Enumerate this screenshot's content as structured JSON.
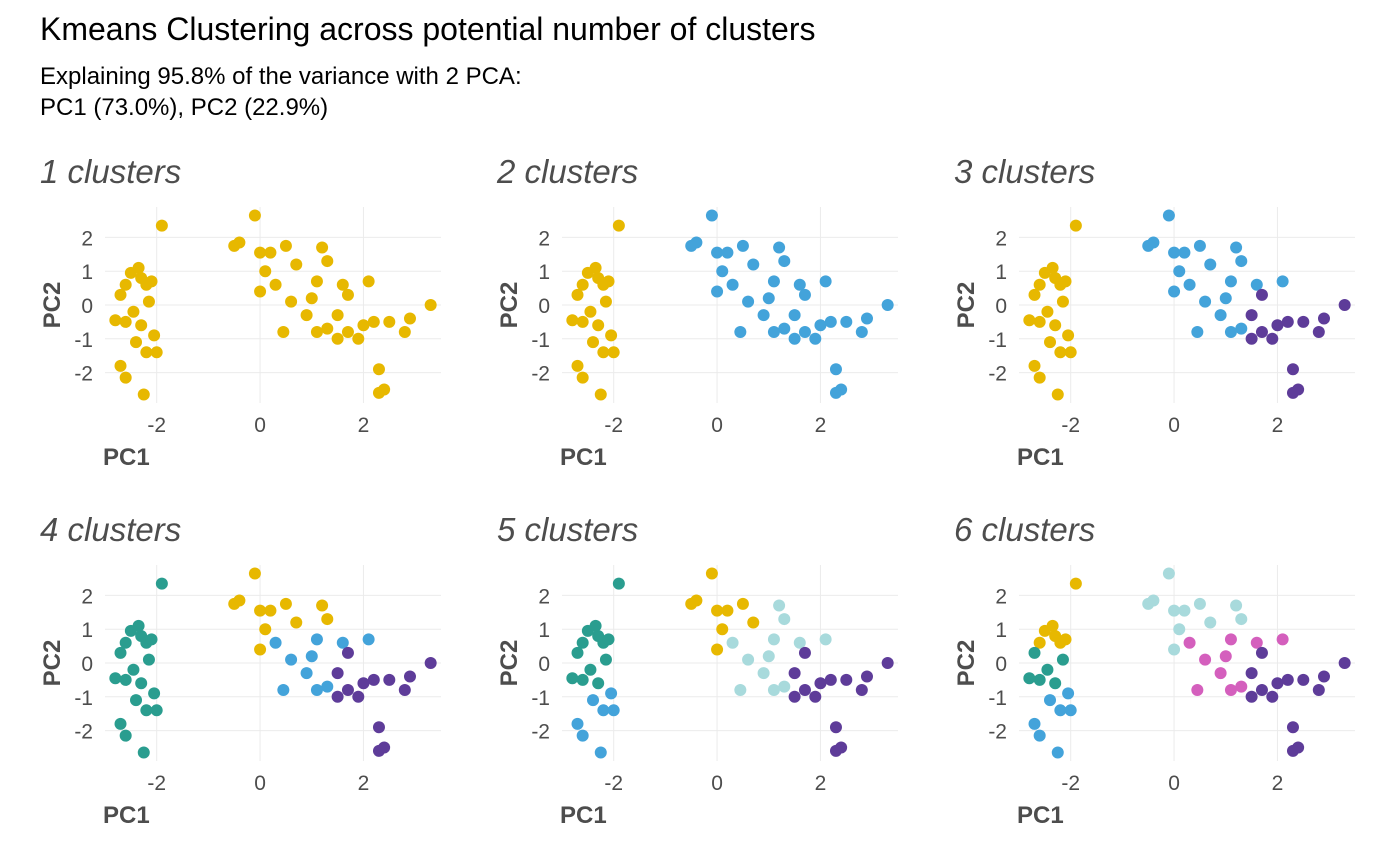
{
  "title": "Kmeans Clustering across potential number of clusters",
  "subtitle": [
    "Explaining 95.8% of the variance with 2 PCA:",
    "PC1 (73.0%), PC2 (22.9%)"
  ],
  "chart_data": [
    {
      "type": "scatter",
      "title": "1 clusters",
      "xlabel": "PC1",
      "ylabel": "PC2",
      "xlim": [
        -3.0,
        3.5
      ],
      "ylim": [
        -2.9,
        2.9
      ],
      "xticks": [
        -2,
        0,
        2
      ],
      "yticks": [
        -2,
        -1,
        0,
        1,
        2
      ],
      "grid": true,
      "series": [
        {
          "color": "#E7B800",
          "x": [
            -2.2,
            -2.5,
            -2.3,
            -2.1,
            -1.9,
            -2.35,
            -2.6,
            -2.7,
            -2.6,
            -2.8,
            -2.3,
            -2.15,
            -2.45,
            -2.4,
            -2.2,
            -2.7,
            -2.6,
            -2.25,
            -2.0,
            -2.05,
            -0.1,
            -0.4,
            -0.5,
            0.0,
            0.2,
            0.5,
            0.1,
            0.0,
            0.7,
            1.2,
            1.3,
            0.3,
            0.45,
            0.6,
            1.0,
            1.1,
            0.9,
            1.3,
            1.1,
            1.6,
            2.1,
            1.5,
            1.7,
            2.0,
            1.9,
            2.3,
            2.4,
            2.3,
            2.8,
            2.9,
            3.3,
            1.7,
            2.2,
            1.5,
            2.5
          ],
          "y": [
            0.6,
            0.95,
            0.8,
            0.7,
            2.35,
            1.1,
            0.6,
            0.3,
            -0.5,
            -0.45,
            -0.6,
            0.1,
            -0.2,
            -1.1,
            -1.4,
            -1.8,
            -2.15,
            -2.65,
            -1.4,
            -0.9,
            2.65,
            1.85,
            1.75,
            1.55,
            1.55,
            1.75,
            1.0,
            0.4,
            1.2,
            1.7,
            1.3,
            0.6,
            -0.8,
            0.1,
            0.2,
            0.7,
            -0.3,
            -0.7,
            -0.8,
            0.6,
            0.7,
            -0.3,
            -0.8,
            -0.6,
            -1.0,
            -1.9,
            -2.5,
            -2.6,
            -0.8,
            -0.4,
            0.0,
            0.3,
            -0.5,
            -1.0,
            -0.5
          ]
        }
      ]
    },
    {
      "type": "scatter",
      "title": "2 clusters",
      "xlabel": "PC1",
      "ylabel": "PC2",
      "xlim": [
        -3.0,
        3.5
      ],
      "ylim": [
        -2.9,
        2.9
      ],
      "xticks": [
        -2,
        0,
        2
      ],
      "yticks": [
        -2,
        -1,
        0,
        1,
        2
      ],
      "grid": true,
      "series": [
        {
          "color": "#E7B800",
          "x": [
            -2.2,
            -2.5,
            -2.3,
            -2.1,
            -1.9,
            -2.35,
            -2.6,
            -2.7,
            -2.6,
            -2.8,
            -2.3,
            -2.15,
            -2.45,
            -2.4,
            -2.2,
            -2.7,
            -2.6,
            -2.25,
            -2.0,
            -2.05
          ],
          "y": [
            0.6,
            0.95,
            0.8,
            0.7,
            2.35,
            1.1,
            0.6,
            0.3,
            -0.5,
            -0.45,
            -0.6,
            0.1,
            -0.2,
            -1.1,
            -1.4,
            -1.8,
            -2.15,
            -2.65,
            -1.4,
            -0.9
          ]
        },
        {
          "color": "#43A3DA",
          "x": [
            -0.1,
            -0.4,
            -0.5,
            0.0,
            0.2,
            0.5,
            0.1,
            0.0,
            0.7,
            1.2,
            1.3,
            0.3,
            0.45,
            0.6,
            1.0,
            1.1,
            0.9,
            1.3,
            1.1,
            1.6,
            2.1,
            1.5,
            1.7,
            2.0,
            1.9,
            2.3,
            2.4,
            2.3,
            2.8,
            2.9,
            3.3,
            1.7,
            2.2,
            1.5,
            2.5
          ],
          "y": [
            2.65,
            1.85,
            1.75,
            1.55,
            1.55,
            1.75,
            1.0,
            0.4,
            1.2,
            1.7,
            1.3,
            0.6,
            -0.8,
            0.1,
            0.2,
            0.7,
            -0.3,
            -0.7,
            -0.8,
            0.6,
            0.7,
            -0.3,
            -0.8,
            -0.6,
            -1.0,
            -1.9,
            -2.5,
            -2.6,
            -0.8,
            -0.4,
            0.0,
            0.3,
            -0.5,
            -1.0,
            -0.5
          ]
        }
      ]
    },
    {
      "type": "scatter",
      "title": "3 clusters",
      "xlabel": "PC1",
      "ylabel": "PC2",
      "xlim": [
        -3.0,
        3.5
      ],
      "ylim": [
        -2.9,
        2.9
      ],
      "xticks": [
        -2,
        0,
        2
      ],
      "yticks": [
        -2,
        -1,
        0,
        1,
        2
      ],
      "grid": true,
      "series": [
        {
          "color": "#E7B800",
          "x": [
            -2.2,
            -2.5,
            -2.3,
            -2.1,
            -1.9,
            -2.35,
            -2.6,
            -2.7,
            -2.6,
            -2.8,
            -2.3,
            -2.15,
            -2.45,
            -2.4,
            -2.2,
            -2.7,
            -2.6,
            -2.25,
            -2.0,
            -2.05
          ],
          "y": [
            0.6,
            0.95,
            0.8,
            0.7,
            2.35,
            1.1,
            0.6,
            0.3,
            -0.5,
            -0.45,
            -0.6,
            0.1,
            -0.2,
            -1.1,
            -1.4,
            -1.8,
            -2.15,
            -2.65,
            -1.4,
            -0.9
          ]
        },
        {
          "color": "#43A3DA",
          "x": [
            -0.1,
            -0.4,
            -0.5,
            0.0,
            0.2,
            0.5,
            0.1,
            0.0,
            0.7,
            1.2,
            1.3,
            0.3,
            0.45,
            0.6,
            1.0,
            1.1,
            0.9,
            1.3,
            1.1,
            1.6,
            2.1
          ],
          "y": [
            2.65,
            1.85,
            1.75,
            1.55,
            1.55,
            1.75,
            1.0,
            0.4,
            1.2,
            1.7,
            1.3,
            0.6,
            -0.8,
            0.1,
            0.2,
            0.7,
            -0.3,
            -0.7,
            -0.8,
            0.6,
            0.7
          ]
        },
        {
          "color": "#5E3C99",
          "x": [
            1.5,
            1.7,
            2.0,
            1.9,
            2.3,
            2.4,
            2.3,
            2.8,
            2.9,
            3.3,
            1.7,
            2.2,
            1.5,
            2.5
          ],
          "y": [
            -0.3,
            -0.8,
            -0.6,
            -1.0,
            -1.9,
            -2.5,
            -2.6,
            -0.8,
            -0.4,
            0.0,
            0.3,
            -0.5,
            -1.0,
            -0.5
          ]
        }
      ]
    },
    {
      "type": "scatter",
      "title": "4 clusters",
      "xlabel": "PC1",
      "ylabel": "PC2",
      "xlim": [
        -3.0,
        3.5
      ],
      "ylim": [
        -2.9,
        2.9
      ],
      "xticks": [
        -2,
        0,
        2
      ],
      "yticks": [
        -2,
        -1,
        0,
        1,
        2
      ],
      "grid": true,
      "series": [
        {
          "color": "#2A9D8F",
          "x": [
            -2.2,
            -2.5,
            -2.3,
            -2.1,
            -1.9,
            -2.35,
            -2.6,
            -2.7,
            -2.6,
            -2.8,
            -2.3,
            -2.15,
            -2.45,
            -2.4,
            -2.2,
            -2.7,
            -2.6,
            -2.25,
            -2.0,
            -2.05
          ],
          "y": [
            0.6,
            0.95,
            0.8,
            0.7,
            2.35,
            1.1,
            0.6,
            0.3,
            -0.5,
            -0.45,
            -0.6,
            0.1,
            -0.2,
            -1.1,
            -1.4,
            -1.8,
            -2.15,
            -2.65,
            -1.4,
            -0.9
          ]
        },
        {
          "color": "#E7B800",
          "x": [
            -0.1,
            -0.4,
            -0.5,
            0.0,
            0.2,
            0.5,
            0.1,
            0.0,
            0.7,
            1.2,
            1.3
          ],
          "y": [
            2.65,
            1.85,
            1.75,
            1.55,
            1.55,
            1.75,
            1.0,
            0.4,
            1.2,
            1.7,
            1.3
          ]
        },
        {
          "color": "#43A3DA",
          "x": [
            0.3,
            0.45,
            0.6,
            1.0,
            1.1,
            0.9,
            1.3,
            1.1,
            1.6,
            2.1
          ],
          "y": [
            0.6,
            -0.8,
            0.1,
            0.2,
            0.7,
            -0.3,
            -0.7,
            -0.8,
            0.6,
            0.7
          ]
        },
        {
          "color": "#5E3C99",
          "x": [
            1.5,
            1.7,
            2.0,
            1.9,
            2.3,
            2.4,
            2.3,
            2.8,
            2.9,
            3.3,
            1.7,
            2.2,
            1.5,
            2.5
          ],
          "y": [
            -0.3,
            -0.8,
            -0.6,
            -1.0,
            -1.9,
            -2.5,
            -2.6,
            -0.8,
            -0.4,
            0.0,
            0.3,
            -0.5,
            -1.0,
            -0.5
          ]
        }
      ]
    },
    {
      "type": "scatter",
      "title": "5 clusters",
      "xlabel": "PC1",
      "ylabel": "PC2",
      "xlim": [
        -3.0,
        3.5
      ],
      "ylim": [
        -2.9,
        2.9
      ],
      "xticks": [
        -2,
        0,
        2
      ],
      "yticks": [
        -2,
        -1,
        0,
        1,
        2
      ],
      "grid": true,
      "series": [
        {
          "color": "#2A9D8F",
          "x": [
            -2.2,
            -2.5,
            -2.3,
            -2.1,
            -1.9,
            -2.35,
            -2.6,
            -2.7,
            -2.6,
            -2.8,
            -2.3,
            -2.15,
            -2.45
          ],
          "y": [
            0.6,
            0.95,
            0.8,
            0.7,
            2.35,
            1.1,
            0.6,
            0.3,
            -0.5,
            -0.45,
            -0.6,
            0.1,
            -0.2
          ]
        },
        {
          "color": "#43A3DA",
          "x": [
            -2.4,
            -2.2,
            -2.7,
            -2.6,
            -2.25,
            -2.0,
            -2.05
          ],
          "y": [
            -1.1,
            -1.4,
            -1.8,
            -2.15,
            -2.65,
            -1.4,
            -0.9
          ]
        },
        {
          "color": "#E7B800",
          "x": [
            -0.1,
            -0.4,
            -0.5,
            0.0,
            0.2,
            0.5,
            0.1,
            0.0,
            0.7
          ],
          "y": [
            2.65,
            1.85,
            1.75,
            1.55,
            1.55,
            1.75,
            1.0,
            0.4,
            1.2
          ]
        },
        {
          "color": "#A8DADC",
          "x": [
            1.2,
            1.3,
            0.3,
            0.45,
            0.6,
            1.0,
            1.1,
            0.9,
            1.3,
            1.1,
            1.6,
            2.1
          ],
          "y": [
            1.7,
            1.3,
            0.6,
            -0.8,
            0.1,
            0.2,
            0.7,
            -0.3,
            -0.7,
            -0.8,
            0.6,
            0.7
          ]
        },
        {
          "color": "#5E3C99",
          "x": [
            1.5,
            1.7,
            2.0,
            1.9,
            2.3,
            2.4,
            2.3,
            2.8,
            2.9,
            3.3,
            1.7,
            2.2,
            1.5,
            2.5
          ],
          "y": [
            -0.3,
            -0.8,
            -0.6,
            -1.0,
            -1.9,
            -2.5,
            -2.6,
            -0.8,
            -0.4,
            0.0,
            0.3,
            -0.5,
            -1.0,
            -0.5
          ]
        }
      ]
    },
    {
      "type": "scatter",
      "title": "6 clusters",
      "xlabel": "PC1",
      "ylabel": "PC2",
      "xlim": [
        -3.0,
        3.5
      ],
      "ylim": [
        -2.9,
        2.9
      ],
      "xticks": [
        -2,
        0,
        2
      ],
      "yticks": [
        -2,
        -1,
        0,
        1,
        2
      ],
      "grid": true,
      "series": [
        {
          "color": "#E7B800",
          "x": [
            -2.2,
            -2.5,
            -2.3,
            -2.1,
            -1.9,
            -2.35,
            -2.6
          ],
          "y": [
            0.6,
            0.95,
            0.8,
            0.7,
            2.35,
            1.1,
            0.6
          ]
        },
        {
          "color": "#2A9D8F",
          "x": [
            -2.7,
            -2.6,
            -2.8,
            -2.3,
            -2.15,
            -2.45
          ],
          "y": [
            0.3,
            -0.5,
            -0.45,
            -0.6,
            0.1,
            -0.2
          ]
        },
        {
          "color": "#43A3DA",
          "x": [
            -2.4,
            -2.2,
            -2.7,
            -2.6,
            -2.25,
            -2.0,
            -2.05
          ],
          "y": [
            -1.1,
            -1.4,
            -1.8,
            -2.15,
            -2.65,
            -1.4,
            -0.9
          ]
        },
        {
          "color": "#A8DADC",
          "x": [
            -0.1,
            -0.4,
            -0.5,
            0.0,
            0.2,
            0.5,
            0.1,
            0.0,
            0.7,
            1.2,
            1.3
          ],
          "y": [
            2.65,
            1.85,
            1.75,
            1.55,
            1.55,
            1.75,
            1.0,
            0.4,
            1.2,
            1.7,
            1.3
          ]
        },
        {
          "color": "#D45FBD",
          "x": [
            0.3,
            0.45,
            0.6,
            1.0,
            1.1,
            0.9,
            1.3,
            1.1,
            1.6,
            2.1
          ],
          "y": [
            0.6,
            -0.8,
            0.1,
            0.2,
            0.7,
            -0.3,
            -0.7,
            -0.8,
            0.6,
            0.7
          ]
        },
        {
          "color": "#5E3C99",
          "x": [
            1.5,
            1.7,
            2.0,
            1.9,
            2.3,
            2.4,
            2.3,
            2.8,
            2.9,
            3.3,
            1.7,
            2.2,
            1.5,
            2.5
          ],
          "y": [
            -0.3,
            -0.8,
            -0.6,
            -1.0,
            -1.9,
            -2.5,
            -2.6,
            -0.8,
            -0.4,
            0.0,
            0.3,
            -0.5,
            -1.0,
            -0.5
          ]
        }
      ]
    }
  ]
}
